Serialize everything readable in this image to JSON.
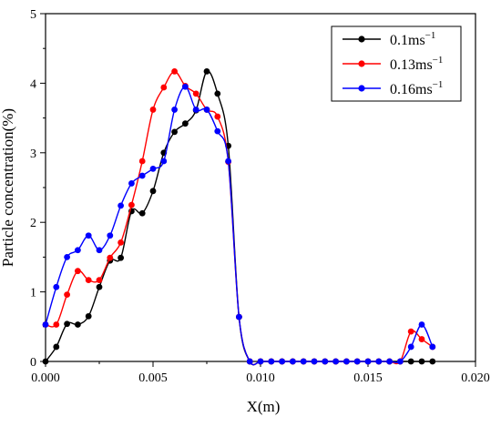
{
  "chart_data": {
    "type": "line",
    "title": "",
    "xlabel": "X(m)",
    "ylabel": "Particle concentration(%)",
    "xlim": [
      0.0,
      0.02
    ],
    "ylim": [
      0,
      5
    ],
    "x_ticks": [
      0.0,
      0.005,
      0.01,
      0.015,
      0.02
    ],
    "x_tick_labels": [
      "0.000",
      "0.005",
      "0.010",
      "0.015",
      "0.020"
    ],
    "y_ticks": [
      0,
      1,
      2,
      3,
      4,
      5
    ],
    "y_tick_labels": [
      "0",
      "1",
      "2",
      "3",
      "4",
      "5"
    ],
    "grid": false,
    "legend_position": "top-right",
    "series": [
      {
        "name": "0.1ms",
        "name_sup": "−1",
        "color": "#000000",
        "marker": "circle",
        "x": [
          0.0,
          0.0005,
          0.001,
          0.0015,
          0.002,
          0.0025,
          0.003,
          0.0035,
          0.004,
          0.0045,
          0.005,
          0.0055,
          0.006,
          0.0065,
          0.007,
          0.0075,
          0.008,
          0.0085,
          0.009,
          0.0095,
          0.01,
          0.0105,
          0.011,
          0.0115,
          0.012,
          0.0125,
          0.013,
          0.0135,
          0.014,
          0.0145,
          0.015,
          0.0155,
          0.016,
          0.0165,
          0.017,
          0.0175,
          0.018
        ],
        "y": [
          0.0,
          0.21,
          0.54,
          0.53,
          0.65,
          1.07,
          1.45,
          1.49,
          2.16,
          2.13,
          2.45,
          3.0,
          3.3,
          3.42,
          3.61,
          4.17,
          3.85,
          3.1,
          0.64,
          0.0,
          0.0,
          0.0,
          0.0,
          0.0,
          0.0,
          0.0,
          0.0,
          0.0,
          0.0,
          0.0,
          0.0,
          0.0,
          0.0,
          0.0,
          0.0,
          0.0,
          0.0
        ]
      },
      {
        "name": "0.13ms",
        "name_sup": "−1",
        "color": "#ff0000",
        "marker": "circle",
        "x": [
          0.0,
          0.0005,
          0.001,
          0.0015,
          0.002,
          0.0025,
          0.003,
          0.0035,
          0.004,
          0.0045,
          0.005,
          0.0055,
          0.006,
          0.0065,
          0.007,
          0.0075,
          0.008,
          0.0085,
          0.009,
          0.0095,
          0.01,
          0.0105,
          0.011,
          0.0115,
          0.012,
          0.0125,
          0.013,
          0.0135,
          0.014,
          0.0145,
          0.015,
          0.0155,
          0.016,
          0.0165,
          0.017,
          0.0175,
          0.018
        ],
        "y": [
          0.53,
          0.53,
          0.96,
          1.3,
          1.17,
          1.17,
          1.49,
          1.71,
          2.25,
          2.88,
          3.62,
          3.94,
          4.17,
          3.96,
          3.85,
          3.62,
          3.52,
          2.87,
          0.64,
          0.0,
          0.0,
          0.0,
          0.0,
          0.0,
          0.0,
          0.0,
          0.0,
          0.0,
          0.0,
          0.0,
          0.0,
          0.0,
          0.0,
          0.0,
          0.43,
          0.32,
          0.21
        ]
      },
      {
        "name": "0.16ms",
        "name_sup": "−1",
        "color": "#0000ff",
        "marker": "circle",
        "x": [
          0.0,
          0.0005,
          0.001,
          0.0015,
          0.002,
          0.0025,
          0.003,
          0.0035,
          0.004,
          0.0045,
          0.005,
          0.0055,
          0.006,
          0.0065,
          0.007,
          0.0075,
          0.008,
          0.0085,
          0.009,
          0.0095,
          0.01,
          0.0105,
          0.011,
          0.0115,
          0.012,
          0.0125,
          0.013,
          0.0135,
          0.014,
          0.0145,
          0.015,
          0.0155,
          0.016,
          0.0165,
          0.017,
          0.0175,
          0.018
        ],
        "y": [
          0.53,
          1.07,
          1.5,
          1.6,
          1.81,
          1.6,
          1.81,
          2.24,
          2.56,
          2.67,
          2.77,
          2.88,
          3.62,
          3.95,
          3.62,
          3.62,
          3.31,
          2.88,
          0.64,
          0.0,
          0.0,
          0.0,
          0.0,
          0.0,
          0.0,
          0.0,
          0.0,
          0.0,
          0.0,
          0.0,
          0.0,
          0.0,
          0.0,
          0.0,
          0.21,
          0.53,
          0.21
        ]
      }
    ]
  }
}
